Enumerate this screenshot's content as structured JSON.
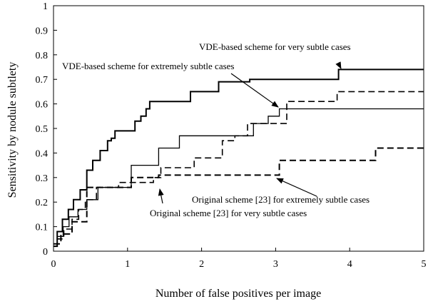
{
  "chart_data": {
    "type": "line",
    "xlabel": "Number of false positives per image",
    "ylabel": "Sensitivity by nodule subtlety",
    "xlim": [
      0,
      5
    ],
    "ylim": [
      0,
      1
    ],
    "xticks": [
      0,
      1,
      2,
      3,
      4,
      5
    ],
    "yticks": [
      0,
      0.1,
      0.2,
      0.3,
      0.4,
      0.5,
      0.6,
      0.7,
      0.8,
      0.9,
      1
    ],
    "ytick_labels": [
      "0",
      "0.1",
      "0.2",
      "0.3",
      "0.4",
      "0.5",
      "0.6",
      "0.7",
      "0.8",
      "0.9",
      "1"
    ],
    "xtick_labels": [
      "0",
      "1",
      "2",
      "3",
      "4",
      "5"
    ],
    "grid": false,
    "legend": "none",
    "series": [
      {
        "name": "VDE-based scheme for very subtle cases",
        "style": "solid",
        "width": 2,
        "x": [
          0,
          0.05,
          0.05,
          0.12,
          0.12,
          0.2,
          0.2,
          0.27,
          0.27,
          0.36,
          0.36,
          0.45,
          0.45,
          0.53,
          0.53,
          0.63,
          0.63,
          0.73,
          0.73,
          0.78,
          0.78,
          0.83,
          0.83,
          1.03,
          1.03,
          1.1,
          1.1,
          1.18,
          1.18,
          1.25,
          1.25,
          1.3,
          1.3,
          1.36,
          1.36,
          1.45,
          1.45,
          1.85,
          1.85,
          2.23,
          2.23,
          2.65,
          2.65,
          3.0,
          3.0,
          3.85,
          3.85,
          5.0
        ],
        "y": [
          0.02,
          0.02,
          0.08,
          0.08,
          0.13,
          0.13,
          0.17,
          0.17,
          0.21,
          0.21,
          0.25,
          0.25,
          0.33,
          0.33,
          0.37,
          0.37,
          0.41,
          0.41,
          0.45,
          0.45,
          0.46,
          0.46,
          0.49,
          0.49,
          0.49,
          0.49,
          0.53,
          0.53,
          0.55,
          0.55,
          0.58,
          0.58,
          0.61,
          0.61,
          0.61,
          0.61,
          0.61,
          0.61,
          0.65,
          0.65,
          0.69,
          0.69,
          0.7,
          0.7,
          0.7,
          0.7,
          0.74,
          0.74
        ]
      },
      {
        "name": "VDE-based scheme for extremely subtle cases",
        "style": "solid",
        "width": 1.3,
        "x": [
          0,
          0.05,
          0.05,
          0.13,
          0.13,
          0.21,
          0.21,
          0.33,
          0.33,
          0.45,
          0.45,
          0.6,
          0.6,
          1.05,
          1.05,
          1.42,
          1.42,
          1.7,
          1.7,
          2.7,
          2.7,
          2.9,
          2.9,
          3.05,
          3.05,
          5.0
        ],
        "y": [
          0.02,
          0.02,
          0.06,
          0.06,
          0.1,
          0.1,
          0.14,
          0.14,
          0.17,
          0.17,
          0.21,
          0.21,
          0.26,
          0.26,
          0.35,
          0.35,
          0.42,
          0.42,
          0.47,
          0.47,
          0.52,
          0.52,
          0.55,
          0.55,
          0.58,
          0.58
        ]
      },
      {
        "name": "Original scheme [23] for very subtle cases",
        "style": "dashed",
        "width": 1.6,
        "x": [
          0,
          0.05,
          0.05,
          0.14,
          0.14,
          0.25,
          0.25,
          0.34,
          0.34,
          0.43,
          0.43,
          0.58,
          0.58,
          0.88,
          0.88,
          1.35,
          1.35,
          1.45,
          1.45,
          1.9,
          1.9,
          2.28,
          2.28,
          2.45,
          2.45,
          2.62,
          2.62,
          3.15,
          3.15,
          3.83,
          3.83,
          4.55,
          4.55,
          5.0
        ],
        "y": [
          0.02,
          0.02,
          0.05,
          0.05,
          0.09,
          0.09,
          0.13,
          0.13,
          0.17,
          0.17,
          0.21,
          0.21,
          0.26,
          0.26,
          0.28,
          0.28,
          0.3,
          0.3,
          0.34,
          0.34,
          0.38,
          0.38,
          0.45,
          0.45,
          0.47,
          0.47,
          0.52,
          0.52,
          0.61,
          0.61,
          0.65,
          0.65,
          0.65,
          0.65
        ]
      },
      {
        "name": "Original scheme [23] for extremely subtle cases",
        "style": "dashed",
        "width": 2,
        "x": [
          0,
          0.1,
          0.1,
          0.25,
          0.25,
          0.45,
          0.45,
          1.05,
          1.05,
          1.42,
          1.42,
          3.05,
          3.05,
          3.95,
          3.95,
          4.35,
          4.35,
          5.0
        ],
        "y": [
          0.03,
          0.03,
          0.07,
          0.07,
          0.12,
          0.12,
          0.26,
          0.26,
          0.3,
          0.3,
          0.31,
          0.31,
          0.37,
          0.37,
          0.37,
          0.37,
          0.42,
          0.42
        ]
      }
    ],
    "annotations": [
      {
        "text": "VDE-based scheme for very subtle cases",
        "target": [
          3.87,
          0.735
        ]
      },
      {
        "text": "VDE-based scheme for extremely subtle cases",
        "target": [
          3.0,
          0.58
        ]
      },
      {
        "text": "Original scheme [23] for extremely subtle cases",
        "target": [
          3.0,
          0.3
        ]
      },
      {
        "text": "Original scheme [23] for very subtle cases",
        "target": [
          1.42,
          0.26
        ]
      }
    ]
  }
}
